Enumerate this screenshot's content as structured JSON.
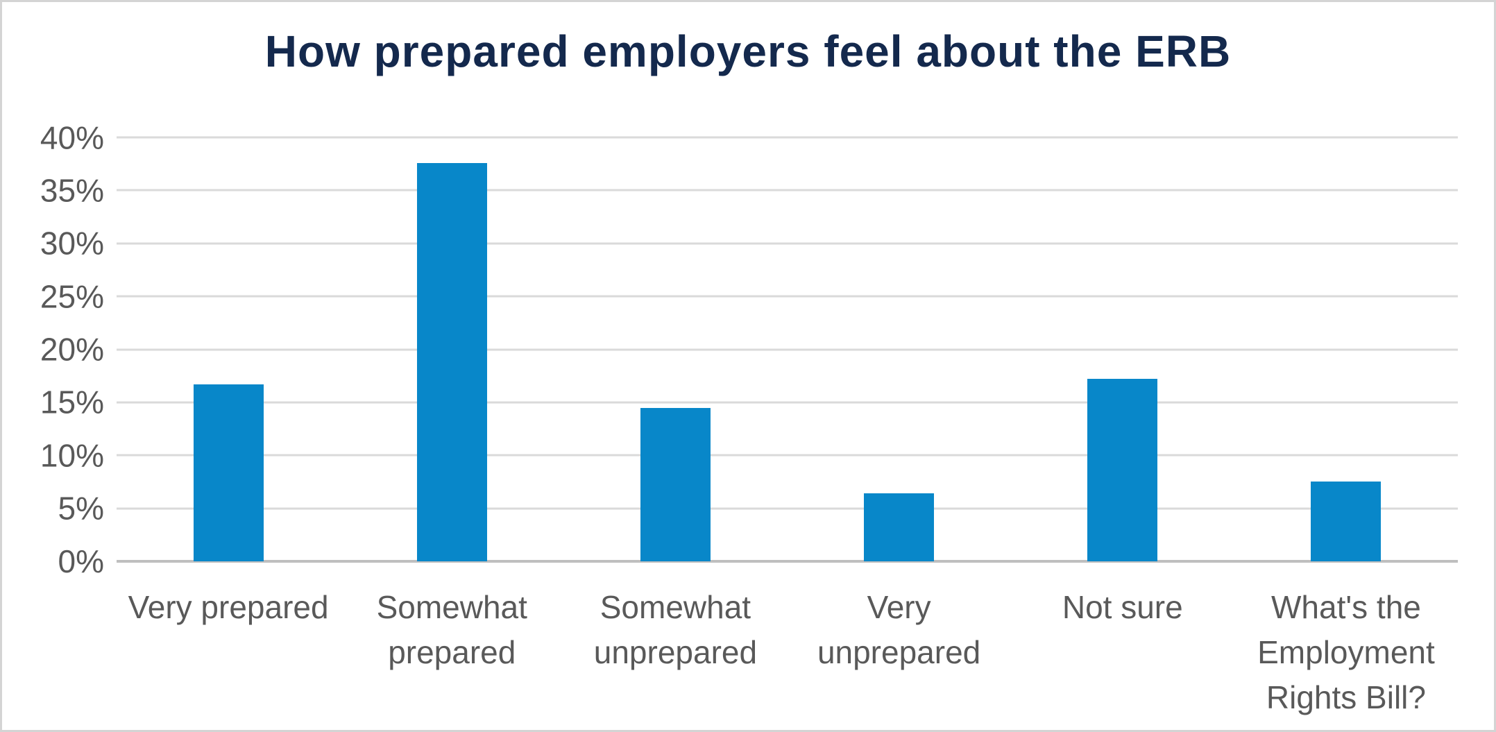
{
  "title": "How prepared employers feel about the ERB",
  "colors": {
    "background": "#ffffff",
    "border": "#d4d4d4",
    "title": "#14294d",
    "axis_text": "#595959",
    "gridline": "#dadada",
    "axis_line": "#bfbfbf",
    "bar": "#0887c9"
  },
  "chart_data": {
    "type": "bar",
    "title": "How prepared employers feel about the ERB",
    "categories": [
      "Very prepared",
      "Somewhat prepared",
      "Somewhat unprepared",
      "Very unprepared",
      "Not sure",
      "What's the Employment Rights Bill?"
    ],
    "category_lines": [
      [
        "Very prepared"
      ],
      [
        "Somewhat",
        "prepared"
      ],
      [
        "Somewhat",
        "unprepared"
      ],
      [
        "Very",
        "unprepared"
      ],
      [
        "Not sure"
      ],
      [
        "What's the",
        "Employment",
        "Rights Bill?"
      ]
    ],
    "values": [
      16.7,
      37.6,
      14.5,
      6.4,
      17.2,
      7.5
    ],
    "unit": "%",
    "xlabel": "",
    "ylabel": "",
    "ylim": [
      0,
      40
    ],
    "ytick_step": 5,
    "yticks": [
      "40%",
      "35%",
      "30%",
      "25%",
      "20%",
      "15%",
      "10%",
      "5%",
      "0%"
    ],
    "grid": true,
    "legend": "none",
    "bar_color": "#0887c9"
  }
}
